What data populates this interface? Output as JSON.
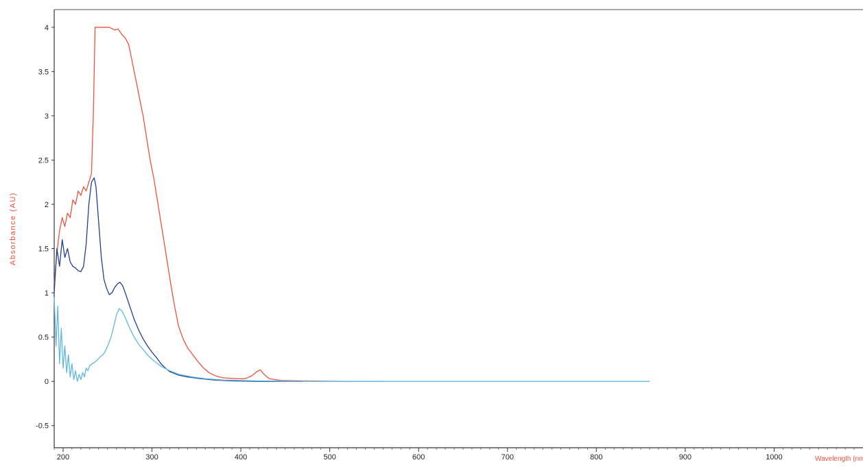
{
  "chart_data": {
    "type": "line",
    "xlabel": "Wavelength (nm)",
    "ylabel": "Absorbance (AU)",
    "xlim": [
      190,
      1100
    ],
    "ylim": [
      -0.75,
      4.2
    ],
    "grid": false,
    "legend": "none",
    "x_ticks": [
      {
        "value": 200,
        "label": "200"
      },
      {
        "value": 300,
        "label": "300"
      },
      {
        "value": 400,
        "label": "400"
      },
      {
        "value": 500,
        "label": "500"
      },
      {
        "value": 600,
        "label": "600"
      },
      {
        "value": 700,
        "label": "700"
      },
      {
        "value": 800,
        "label": "800"
      },
      {
        "value": 900,
        "label": "900"
      },
      {
        "value": 1000,
        "label": "1000"
      }
    ],
    "y_ticks": [
      {
        "value": -0.5,
        "label": "-0.5"
      },
      {
        "value": 0,
        "label": "0"
      },
      {
        "value": 0.5,
        "label": "0.5"
      },
      {
        "value": 1,
        "label": "1"
      },
      {
        "value": 1.5,
        "label": "1.5"
      },
      {
        "value": 2,
        "label": "2"
      },
      {
        "value": 2.5,
        "label": "2.5"
      },
      {
        "value": 3,
        "label": "3"
      },
      {
        "value": 3.5,
        "label": "3.5"
      },
      {
        "value": 4,
        "label": "4"
      }
    ],
    "series": [
      {
        "color": "#f0503c",
        "points": [
          [
            190,
            1.1
          ],
          [
            193,
            1.45
          ],
          [
            196,
            1.7
          ],
          [
            199,
            1.85
          ],
          [
            202,
            1.75
          ],
          [
            205,
            1.9
          ],
          [
            208,
            1.85
          ],
          [
            211,
            2.05
          ],
          [
            214,
            2.0
          ],
          [
            217,
            2.15
          ],
          [
            220,
            2.1
          ],
          [
            223,
            2.2
          ],
          [
            226,
            2.15
          ],
          [
            229,
            2.25
          ],
          [
            232,
            2.35
          ],
          [
            234,
            3.0
          ],
          [
            236,
            4.0
          ],
          [
            240,
            4.0
          ],
          [
            246,
            4.0
          ],
          [
            252,
            4.0
          ],
          [
            258,
            3.97
          ],
          [
            262,
            3.98
          ],
          [
            266,
            3.92
          ],
          [
            270,
            3.88
          ],
          [
            274,
            3.8
          ],
          [
            278,
            3.6
          ],
          [
            282,
            3.4
          ],
          [
            286,
            3.2
          ],
          [
            290,
            3.0
          ],
          [
            294,
            2.75
          ],
          [
            298,
            2.5
          ],
          [
            302,
            2.3
          ],
          [
            306,
            2.05
          ],
          [
            310,
            1.8
          ],
          [
            314,
            1.55
          ],
          [
            318,
            1.3
          ],
          [
            322,
            1.05
          ],
          [
            326,
            0.82
          ],
          [
            330,
            0.62
          ],
          [
            335,
            0.48
          ],
          [
            340,
            0.38
          ],
          [
            346,
            0.3
          ],
          [
            352,
            0.22
          ],
          [
            358,
            0.15
          ],
          [
            364,
            0.1
          ],
          [
            372,
            0.06
          ],
          [
            380,
            0.04
          ],
          [
            395,
            0.03
          ],
          [
            405,
            0.03
          ],
          [
            412,
            0.06
          ],
          [
            418,
            0.11
          ],
          [
            422,
            0.13
          ],
          [
            426,
            0.08
          ],
          [
            432,
            0.03
          ],
          [
            445,
            0.01
          ],
          [
            470,
            0.005
          ],
          [
            520,
            0.0
          ],
          [
            560,
            0.0
          ]
        ]
      },
      {
        "color": "#1f3f8f",
        "points": [
          [
            190,
            1.0
          ],
          [
            193,
            1.5
          ],
          [
            196,
            1.3
          ],
          [
            199,
            1.6
          ],
          [
            202,
            1.4
          ],
          [
            205,
            1.5
          ],
          [
            208,
            1.35
          ],
          [
            211,
            1.3
          ],
          [
            214,
            1.28
          ],
          [
            217,
            1.25
          ],
          [
            220,
            1.24
          ],
          [
            223,
            1.3
          ],
          [
            226,
            1.55
          ],
          [
            229,
            2.0
          ],
          [
            232,
            2.25
          ],
          [
            235,
            2.3
          ],
          [
            237,
            2.2
          ],
          [
            240,
            1.8
          ],
          [
            243,
            1.4
          ],
          [
            246,
            1.15
          ],
          [
            249,
            1.05
          ],
          [
            252,
            0.98
          ],
          [
            255,
            1.0
          ],
          [
            258,
            1.06
          ],
          [
            261,
            1.1
          ],
          [
            264,
            1.12
          ],
          [
            267,
            1.08
          ],
          [
            270,
            1.0
          ],
          [
            275,
            0.85
          ],
          [
            280,
            0.7
          ],
          [
            285,
            0.58
          ],
          [
            290,
            0.48
          ],
          [
            295,
            0.4
          ],
          [
            300,
            0.33
          ],
          [
            305,
            0.27
          ],
          [
            310,
            0.2
          ],
          [
            315,
            0.15
          ],
          [
            320,
            0.11
          ],
          [
            330,
            0.07
          ],
          [
            340,
            0.05
          ],
          [
            355,
            0.03
          ],
          [
            370,
            0.015
          ],
          [
            390,
            0.005
          ],
          [
            420,
            0.0
          ],
          [
            470,
            0.0
          ]
        ]
      },
      {
        "color": "#5fb8e0",
        "points": [
          [
            190,
            0.95
          ],
          [
            192,
            0.4
          ],
          [
            194,
            0.85
          ],
          [
            196,
            0.2
          ],
          [
            198,
            0.6
          ],
          [
            200,
            0.15
          ],
          [
            202,
            0.4
          ],
          [
            204,
            0.1
          ],
          [
            206,
            0.3
          ],
          [
            208,
            0.05
          ],
          [
            210,
            0.2
          ],
          [
            212,
            0.02
          ],
          [
            214,
            0.12
          ],
          [
            216,
            0.0
          ],
          [
            218,
            0.08
          ],
          [
            220,
            0.02
          ],
          [
            222,
            0.1
          ],
          [
            224,
            0.05
          ],
          [
            226,
            0.15
          ],
          [
            228,
            0.12
          ],
          [
            230,
            0.18
          ],
          [
            233,
            0.2
          ],
          [
            236,
            0.22
          ],
          [
            239,
            0.25
          ],
          [
            242,
            0.28
          ],
          [
            245,
            0.3
          ],
          [
            248,
            0.35
          ],
          [
            251,
            0.42
          ],
          [
            254,
            0.5
          ],
          [
            257,
            0.62
          ],
          [
            260,
            0.75
          ],
          [
            263,
            0.82
          ],
          [
            266,
            0.8
          ],
          [
            270,
            0.72
          ],
          [
            275,
            0.6
          ],
          [
            280,
            0.5
          ],
          [
            285,
            0.42
          ],
          [
            290,
            0.36
          ],
          [
            295,
            0.3
          ],
          [
            300,
            0.25
          ],
          [
            310,
            0.17
          ],
          [
            320,
            0.12
          ],
          [
            330,
            0.08
          ],
          [
            345,
            0.05
          ],
          [
            360,
            0.03
          ],
          [
            380,
            0.015
          ],
          [
            420,
            0.005
          ],
          [
            480,
            0.0
          ],
          [
            560,
            0.0
          ],
          [
            620,
            0.0
          ],
          [
            660,
            0.0
          ],
          [
            680,
            0.0
          ],
          [
            740,
            0.0
          ],
          [
            800,
            0.0
          ],
          [
            860,
            0.0
          ]
        ]
      }
    ]
  }
}
